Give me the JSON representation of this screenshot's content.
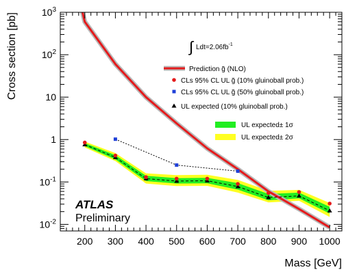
{
  "chart_data": {
    "type": "line",
    "xlabel": "Mass [GeV]",
    "ylabel": "Cross section [pb]",
    "xlim": [
      120,
      1040
    ],
    "ylim": [
      0.007,
      1000
    ],
    "y_scale": "log",
    "x_ticks": [
      200,
      300,
      400,
      500,
      600,
      700,
      800,
      900,
      1000
    ],
    "y_ticks": [
      {
        "value": 0.01,
        "base": "10",
        "exp": "-2"
      },
      {
        "value": 0.1,
        "base": "10",
        "exp": "-1"
      },
      {
        "value": 1,
        "base": "1",
        "exp": ""
      },
      {
        "value": 10,
        "base": "10",
        "exp": ""
      },
      {
        "value": 100,
        "base": "10",
        "exp": "2"
      },
      {
        "value": 1000,
        "base": "10",
        "exp": "3"
      }
    ],
    "integral_label": "Ldt=2.06fb",
    "integral_sup": "-1",
    "atlas_label": "ATLAS",
    "preliminary_label": "Preliminary",
    "prediction": {
      "name": "Prediction g̃ (NLO)",
      "color": "#e41a1c",
      "x": [
        200,
        300,
        400,
        500,
        600,
        700,
        800,
        900,
        1000
      ],
      "y": [
        600,
        60,
        10,
        2.4,
        0.62,
        0.2,
        0.06,
        0.023,
        0.0085
      ]
    },
    "observed_10": {
      "name": "CLs 95% CL UL g̃ (10% gluinoball prob.)",
      "color": "#e41a1c",
      "x": [
        200,
        300,
        400,
        500,
        600,
        700,
        800,
        900,
        1000
      ],
      "y": [
        0.85,
        0.42,
        0.13,
        0.12,
        0.12,
        0.09,
        0.055,
        0.058,
        0.031
      ]
    },
    "observed_50": {
      "name": "CLs 95% CL UL g̃ (50% gluinoball prob.)",
      "color": "#1f3fd8",
      "x": [
        300,
        500,
        700
      ],
      "y": [
        1.02,
        0.25,
        0.18
      ]
    },
    "expected_10": {
      "name": "UL expected (10% gluinoball prob.)",
      "color": "#000000",
      "x": [
        200,
        300,
        400,
        500,
        600,
        700,
        800,
        900,
        1000
      ],
      "y": [
        0.76,
        0.38,
        0.12,
        0.105,
        0.107,
        0.078,
        0.043,
        0.047,
        0.021
      ]
    },
    "band_1sigma": {
      "name": "UL expected± 1σ",
      "color": "#22ee22",
      "x": [
        200,
        300,
        400,
        500,
        600,
        700,
        800,
        900,
        1000
      ],
      "low": [
        0.7,
        0.34,
        0.105,
        0.092,
        0.093,
        0.066,
        0.037,
        0.041,
        0.018
      ],
      "high": [
        0.83,
        0.43,
        0.14,
        0.123,
        0.125,
        0.094,
        0.052,
        0.056,
        0.026
      ]
    },
    "band_2sigma": {
      "name": "UL expected± 2σ",
      "color": "#ffff22",
      "x": [
        200,
        300,
        400,
        500,
        600,
        700,
        800,
        900,
        1000
      ],
      "low": [
        0.65,
        0.31,
        0.092,
        0.08,
        0.081,
        0.056,
        0.033,
        0.036,
        0.015
      ],
      "high": [
        0.9,
        0.48,
        0.16,
        0.145,
        0.148,
        0.112,
        0.062,
        0.065,
        0.032
      ]
    }
  }
}
